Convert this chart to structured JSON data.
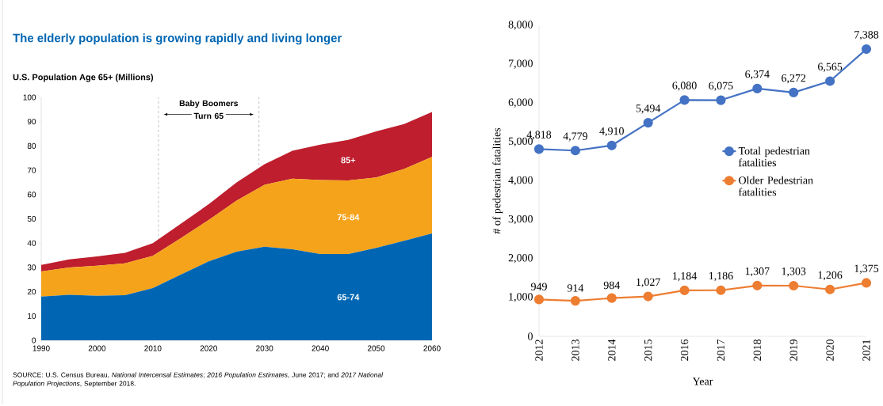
{
  "chart_data": [
    {
      "type": "area",
      "stacked": true,
      "title": "The elderly population is growing rapidly and living longer",
      "subtitle": "U.S. Population Age 65+ (Millions)",
      "x": [
        1990,
        1995,
        2000,
        2005,
        2010,
        2015,
        2020,
        2025,
        2030,
        2035,
        2040,
        2045,
        2050,
        2055,
        2060
      ],
      "series": [
        {
          "name": "65-74",
          "color": "#0066b3",
          "values": [
            18,
            18.7,
            18.3,
            18.6,
            21.5,
            27,
            32.5,
            36.5,
            38.5,
            37.5,
            35.5,
            35.5,
            38,
            41,
            44
          ]
        },
        {
          "name": "75-84",
          "color": "#f5a31a",
          "values": [
            10.3,
            11.3,
            12.4,
            13.1,
            13.3,
            15,
            17,
            21,
            25.5,
            29,
            30.5,
            30.3,
            29,
            29.5,
            31.5
          ]
        },
        {
          "name": "85+",
          "color": "#be1e2d",
          "values": [
            2.7,
            3.3,
            3.8,
            4.3,
            5.2,
            6,
            6.5,
            7.5,
            8.5,
            11.5,
            14.5,
            16.7,
            19,
            18.5,
            18.5
          ]
        }
      ],
      "xlim": [
        1990,
        2060
      ],
      "xticks": [
        1990,
        2000,
        2010,
        2020,
        2030,
        2040,
        2050,
        2060
      ],
      "ylim": [
        0,
        100
      ],
      "yticks": [
        0,
        10,
        20,
        30,
        40,
        50,
        60,
        70,
        80,
        90,
        100
      ],
      "ref_lines": [
        {
          "axis": "x",
          "value": 2011,
          "color": "#b0b0b0",
          "line_style": "dashed"
        },
        {
          "axis": "x",
          "value": 2029,
          "color": "#b0b0b0",
          "line_style": "dashed"
        }
      ],
      "annotations": [
        "Baby Boomers Turn 65",
        "SOURCE: U.S. Census Bureau, *National Intercensal Estimates*; *2016 Population Estimates*, June 2017; and *2017 National Population Projections*, September 2018."
      ],
      "grid": false,
      "legend": false
    },
    {
      "type": "line",
      "xlabel": "Year",
      "ylabel": "# of pedestrian fatalities",
      "categories": [
        "2012",
        "2013",
        "2014",
        "2015",
        "2016",
        "2017",
        "2018",
        "2019",
        "2020",
        "2021"
      ],
      "series": [
        {
          "name": "Total pedestrian fatalities",
          "color": "#4472c4",
          "values": [
            4818,
            4779,
            4910,
            5494,
            6080,
            6075,
            6374,
            6272,
            6565,
            7388
          ],
          "value_labels": [
            "4,818",
            "4,779",
            "4,910",
            "5,494",
            "6,080",
            "6,075",
            "6,374",
            "6,272",
            "6,565",
            "7,388"
          ]
        },
        {
          "name": "Older Pedestrian fatalities",
          "color": "#ed7d31",
          "values": [
            949,
            914,
            984,
            1027,
            1184,
            1186,
            1307,
            1303,
            1206,
            1375
          ],
          "value_labels": [
            "949",
            "914",
            "984",
            "1,027",
            "1,184",
            "1,186",
            "1,307",
            "1,303",
            "1,206",
            "1,375"
          ]
        }
      ],
      "ylim": [
        0,
        8000
      ],
      "yticks": [
        0,
        {
          "value": 1000,
          "label": "1,000"
        },
        {
          "value": 2000,
          "label": "2,000"
        },
        {
          "value": 3000,
          "label": "3,000"
        },
        {
          "value": 4000,
          "label": "4,000"
        },
        {
          "value": 5000,
          "label": "5,000"
        },
        {
          "value": 6000,
          "label": "6,000"
        },
        {
          "value": 7000,
          "label": "7,000"
        },
        {
          "value": 8000,
          "label": "8,000"
        }
      ],
      "marker": "circle",
      "line_style": "solid",
      "legend": "right",
      "grid": false
    }
  ]
}
